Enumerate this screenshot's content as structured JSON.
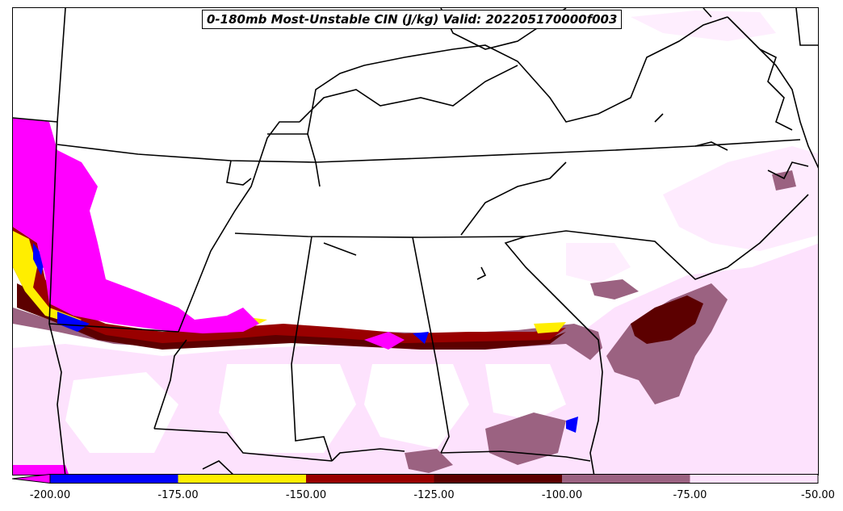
{
  "title": "0-180mb Most-Unstable CIN (J/kg) Valid: 202205170000f003",
  "colorbar": {
    "ticks": [
      "-200.00",
      "-175.00",
      "-150.00",
      "-125.00",
      "-100.00",
      "-75.00",
      "-50.00"
    ],
    "bins": [
      {
        "from": null,
        "to": -200,
        "color": "#ff00ff"
      },
      {
        "from": -200,
        "to": -175,
        "color": "#0000ff"
      },
      {
        "from": -175,
        "to": -150,
        "color": "#ffee00"
      },
      {
        "from": -150,
        "to": -125,
        "color": "#990000"
      },
      {
        "from": -125,
        "to": -100,
        "color": "#5c0000"
      },
      {
        "from": -100,
        "to": -75,
        "color": "#9b6281"
      },
      {
        "from": -75,
        "to": -50,
        "color": "#fde2fd"
      }
    ],
    "extend": "min"
  }
}
